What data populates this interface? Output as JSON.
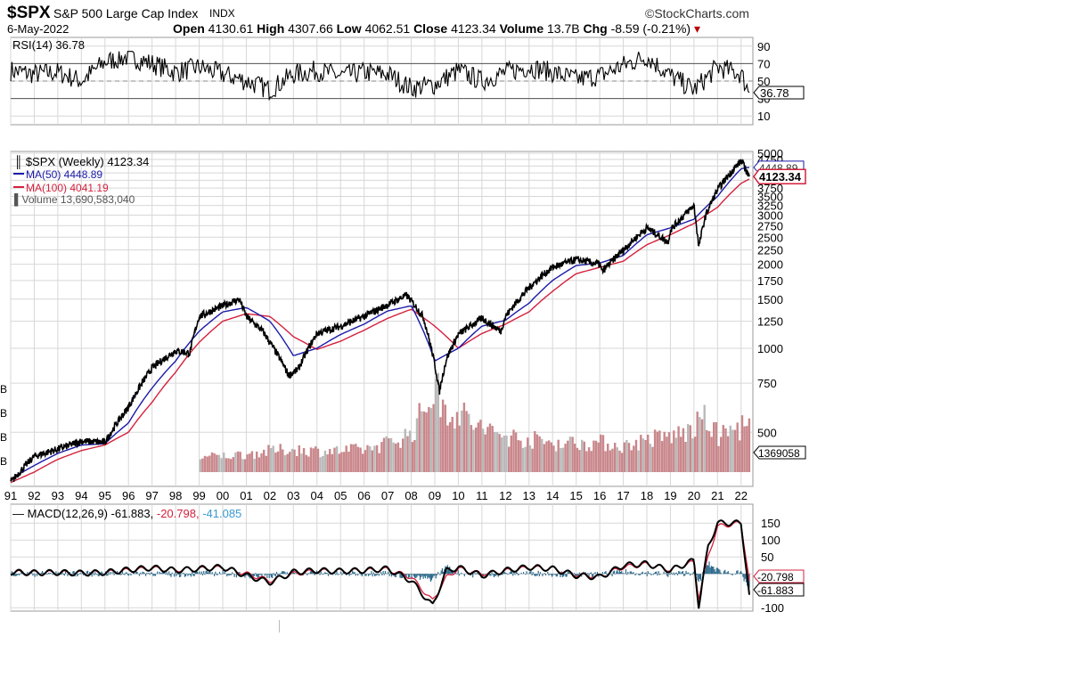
{
  "header": {
    "symbol": "$SPX",
    "name": "S&P 500 Large Cap Index",
    "exchange": "INDX",
    "brand": "©StockCharts.com",
    "date": "6-May-2022",
    "open_label": "Open",
    "open": "4130.61",
    "high_label": "High",
    "high": "4307.66",
    "low_label": "Low",
    "low": "4062.51",
    "close_label": "Close",
    "close": "4123.34",
    "volume_label": "Volume",
    "volume": "13.7B",
    "chg_label": "Chg",
    "chg": "-8.59 (-0.21%)"
  },
  "colors": {
    "price": "#000000",
    "ma50": "#1a1aa8",
    "ma100": "#d4213d",
    "volume": "#c9878b",
    "rsi": "#000000",
    "macd": "#000000",
    "signal": "#d4213d",
    "histogram": "#2e6b8c",
    "grid": "#d7d7d7"
  },
  "chart_data": [
    {
      "type": "line",
      "panel": "RSI",
      "legend": "RSI(14) 36.78",
      "current_label": "36.78",
      "yticks": [
        "90",
        "70",
        "50",
        "30",
        "10"
      ],
      "reference_lines": [
        70,
        30
      ],
      "ylim": [
        0,
        100
      ],
      "x": [
        1991,
        1992,
        1993,
        1994,
        1995,
        1996,
        1997,
        1998,
        1999,
        2000,
        2001,
        2002,
        2003,
        2004,
        2005,
        2006,
        2007,
        2008,
        2009,
        2010,
        2011,
        2012,
        2013,
        2014,
        2015,
        2016,
        2017,
        2018,
        2019,
        2020,
        2021,
        2022,
        2022.35
      ],
      "values": [
        62,
        58,
        60,
        50,
        72,
        78,
        70,
        60,
        66,
        58,
        50,
        40,
        58,
        62,
        56,
        60,
        58,
        42,
        46,
        62,
        50,
        60,
        66,
        60,
        52,
        56,
        68,
        78,
        56,
        40,
        66,
        58,
        36.78
      ]
    },
    {
      "type": "line",
      "panel": "price",
      "scale": "log",
      "legend": [
        "$SPX (Weekly) 4123.34",
        "MA(50) 4448.89",
        "MA(100) 4041.19",
        "Volume 13,690,583,040"
      ],
      "current_labels": [
        "4448.89",
        "4123.34"
      ],
      "volume_label": "1369058",
      "yticks": [
        "5000",
        "4750",
        "4500",
        "4250",
        "4000",
        "3750",
        "3500",
        "3250",
        "3000",
        "2750",
        "2500",
        "2250",
        "2000",
        "1750",
        "1500",
        "1250",
        "1000",
        "750",
        "500"
      ],
      "xticks": [
        "91",
        "92",
        "93",
        "94",
        "95",
        "96",
        "97",
        "98",
        "99",
        "00",
        "01",
        "02",
        "03",
        "04",
        "05",
        "06",
        "07",
        "08",
        "09",
        "10",
        "11",
        "12",
        "13",
        "14",
        "15",
        "16",
        "17",
        "18",
        "19",
        "20",
        "21",
        "22"
      ],
      "left_volume_ticks": [
        "B",
        "B",
        "B",
        "B"
      ],
      "ylim": [
        320,
        5000
      ],
      "series": [
        {
          "name": "$SPX (Weekly)",
          "x": [
            1991,
            1992,
            1993,
            1994,
            1995,
            1996,
            1997,
            1998,
            1998.6,
            1999,
            2000,
            2000.7,
            2001,
            2001.7,
            2002,
            2002.8,
            2003.2,
            2004,
            2005,
            2006,
            2007,
            2007.8,
            2008.5,
            2009.2,
            2009.5,
            2010,
            2011,
            2011.8,
            2012,
            2013,
            2014,
            2015,
            2016,
            2016.1,
            2017,
            2018,
            2018.9,
            2019,
            2020,
            2020.2,
            2020.5,
            2021,
            2022,
            2022.35
          ],
          "values": [
            330,
            410,
            435,
            465,
            460,
            615,
            850,
            980,
            960,
            1300,
            1420,
            1500,
            1300,
            1150,
            1050,
            800,
            840,
            1130,
            1200,
            1300,
            1430,
            1550,
            1300,
            700,
            920,
            1120,
            1280,
            1150,
            1300,
            1650,
            1950,
            2080,
            2000,
            1880,
            2250,
            2700,
            2400,
            2650,
            3250,
            2300,
            3000,
            3700,
            4700,
            4123.34
          ]
        },
        {
          "name": "MA(50)",
          "x": [
            1991,
            1992,
            1993,
            1994,
            1995,
            1996,
            1997,
            1998,
            1999,
            2000,
            2001,
            2002,
            2003,
            2004,
            2005,
            2006,
            2007,
            2008,
            2009,
            2010,
            2011,
            2012,
            2013,
            2014,
            2015,
            2016,
            2017,
            2018,
            2019,
            2020,
            2021,
            2022,
            2022.35
          ],
          "values": [
            340,
            380,
            420,
            450,
            455,
            540,
            720,
            900,
            1150,
            1350,
            1400,
            1250,
            940,
            1000,
            1120,
            1220,
            1360,
            1420,
            900,
            1000,
            1200,
            1260,
            1450,
            1750,
            1980,
            2020,
            2150,
            2550,
            2700,
            2900,
            3500,
            4400,
            4448.89
          ]
        },
        {
          "name": "MA(100)",
          "x": [
            1991,
            1992,
            1993,
            1994,
            1995,
            1996,
            1997,
            1998,
            1999,
            2000,
            2001,
            2002,
            2003,
            2004,
            2005,
            2006,
            2007,
            2008,
            2009,
            2010,
            2011,
            2012,
            2013,
            2014,
            2015,
            2016,
            2017,
            2018,
            2019,
            2020,
            2021,
            2022,
            2022.35
          ],
          "values": [
            330,
            360,
            400,
            430,
            450,
            500,
            640,
            820,
            1050,
            1250,
            1330,
            1300,
            1100,
            990,
            1060,
            1160,
            1280,
            1380,
            1200,
            1000,
            1130,
            1220,
            1350,
            1600,
            1850,
            1950,
            2050,
            2350,
            2550,
            2800,
            3200,
            3900,
            4041.19
          ]
        },
        {
          "name": "Volume",
          "x": [
            1999,
            2000,
            2001,
            2002,
            2003,
            2004,
            2005,
            2006,
            2007,
            2008,
            2008.8,
            2009,
            2009.3,
            2010,
            2011,
            2012,
            2013,
            2014,
            2015,
            2016,
            2017,
            2018,
            2019,
            2020,
            2020.3,
            2021,
            2022,
            2022.35
          ],
          "values": [
            4.5,
            5,
            5.5,
            6.5,
            7,
            6.5,
            6.5,
            7,
            9,
            12,
            24,
            26,
            20,
            18,
            13,
            11,
            10,
            9,
            9,
            9,
            8,
            10,
            11,
            13,
            17,
            11,
            14,
            13.69
          ]
        }
      ]
    },
    {
      "type": "line",
      "panel": "MACD",
      "legend_prefix": "MACD(12,26,9)",
      "legend_macd": "-61.883",
      "legend_signal": "-20.798",
      "legend_hist": "-41.085",
      "current_labels": [
        "-20.798",
        "-61.883"
      ],
      "yticks": [
        "150",
        "100",
        "50",
        "0",
        "-100"
      ],
      "ylim": [
        -110,
        190
      ],
      "x": [
        1991,
        1992,
        1993,
        1994,
        1995,
        1996,
        1997,
        1998,
        1999,
        2000,
        2001,
        2002,
        2003,
        2004,
        2005,
        2006,
        2007,
        2008,
        2008.9,
        2009.5,
        2010,
        2011,
        2012,
        2013,
        2014,
        2015,
        2016,
        2017,
        2018,
        2019,
        2020,
        2020.2,
        2020.6,
        2021,
        2022,
        2022.35
      ],
      "series": [
        {
          "name": "MACD",
          "values": [
            5,
            3,
            4,
            2,
            4,
            12,
            18,
            10,
            15,
            20,
            -5,
            -25,
            5,
            10,
            8,
            10,
            15,
            -20,
            -95,
            10,
            18,
            -5,
            10,
            20,
            15,
            -5,
            -10,
            25,
            30,
            10,
            40,
            -95,
            80,
            150,
            150,
            -61.883
          ]
        },
        {
          "name": "Signal",
          "values": [
            4,
            3,
            3,
            2,
            3,
            10,
            16,
            12,
            14,
            18,
            0,
            -20,
            0,
            8,
            8,
            9,
            13,
            -10,
            -80,
            -10,
            15,
            0,
            8,
            18,
            15,
            -2,
            -8,
            20,
            28,
            12,
            35,
            -70,
            50,
            140,
            150,
            -20.798
          ]
        },
        {
          "name": "Histogram",
          "values": [
            1,
            0,
            1,
            0,
            1,
            2,
            2,
            -2,
            1,
            2,
            -5,
            -5,
            5,
            2,
            0,
            1,
            2,
            -10,
            -15,
            20,
            3,
            -5,
            2,
            2,
            0,
            -3,
            -2,
            5,
            2,
            -2,
            5,
            -25,
            30,
            10,
            0,
            -41.085
          ]
        }
      ]
    }
  ]
}
